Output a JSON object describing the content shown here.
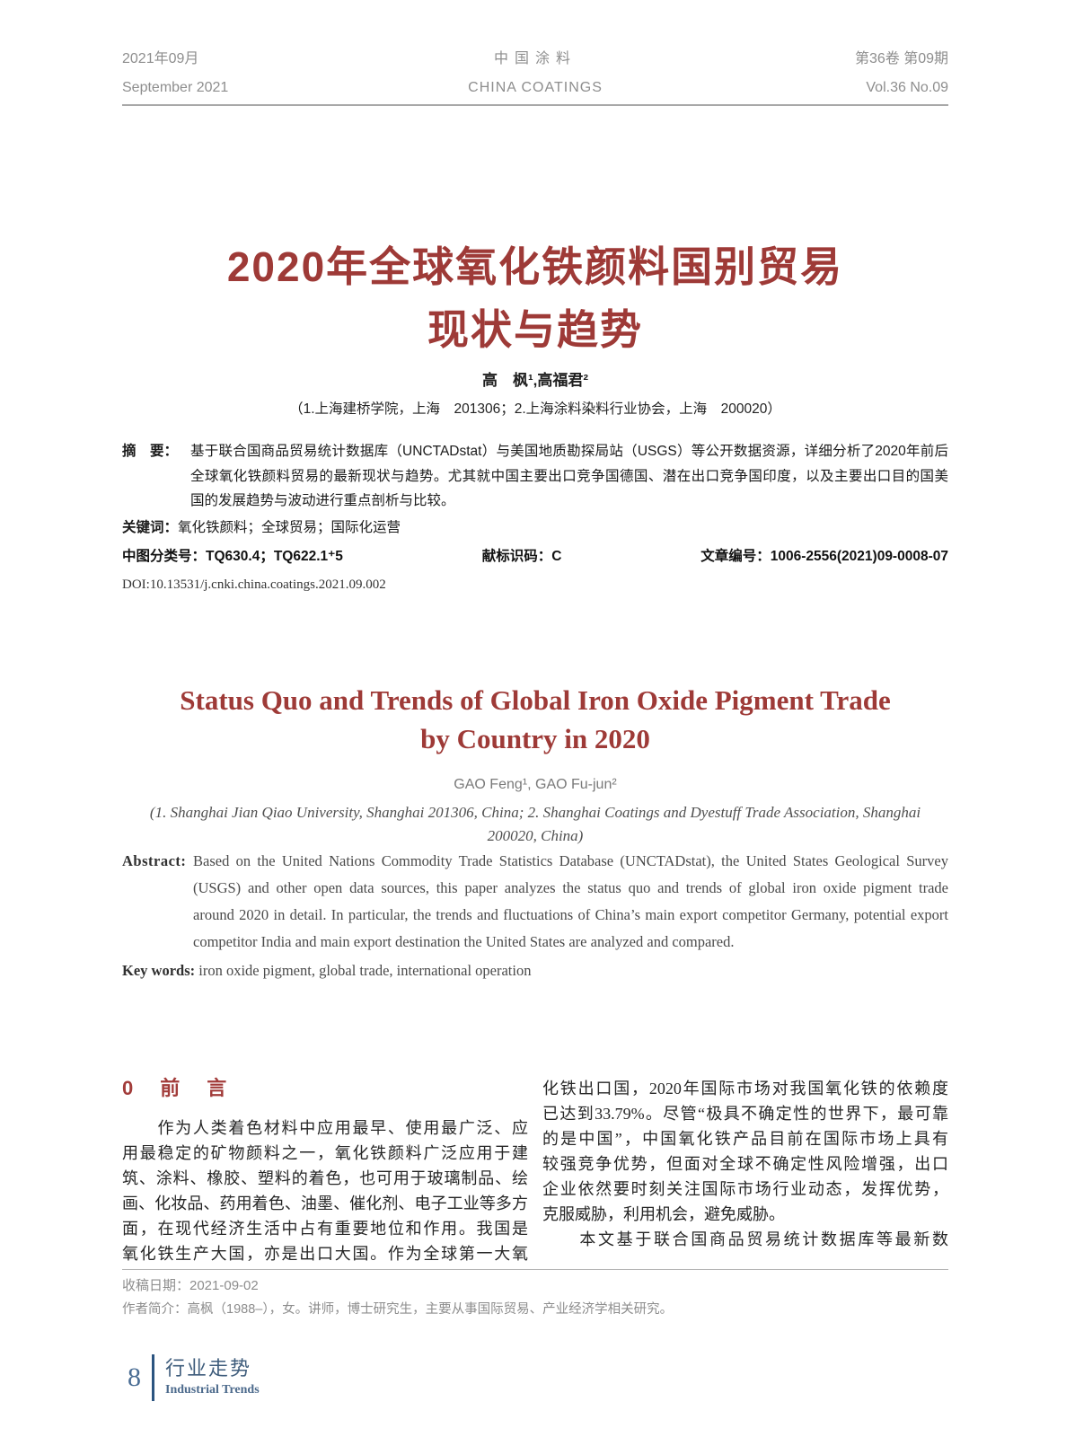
{
  "header": {
    "date_cn": "2021年09月",
    "date_en": "September 2021",
    "journal_cn": "中国涂料",
    "journal_en": "CHINA COATINGS",
    "volume_cn": "第36卷 第09期",
    "volume_en": "Vol.36  No.09"
  },
  "article": {
    "title_cn": [
      "2020年全球氧化铁颜料国别贸易",
      "现状与趋势"
    ],
    "authors_cn": "高　枫¹,高福君²",
    "affiliation_cn": "（1.上海建桥学院，上海　201306；2.上海涂料染料行业协会，上海　200020）",
    "abstract_cn": {
      "label": "摘　要：",
      "lines": [
        "基于联合国商品贸易统计数据库（UNCTADstat）与美国地质勘探局站（USGS）等公开数据资源，详细分析了2020年前后",
        "全球氧化铁颜料贸易的最新现状与趋势。尤其就中国主要出口竞争国德国、潜在出口竞争国印度，以及主要出口目的国美",
        "国的发展趋势与波动进行重点剖析与比较。"
      ]
    },
    "keywords_cn": {
      "label": "关键词：",
      "text": "氧化铁颜料；全球贸易；国际化运营"
    },
    "meta": {
      "clc": "中图分类号：TQ630.4；TQ622.1⁺5",
      "doc_code": "献标识码：C",
      "article_no": "文章编号：1006-2556(2021)09-0008-07",
      "doi": "DOI:10.13531/j.cnki.china.coatings.2021.09.002"
    },
    "title_en": [
      "Status Quo and Trends of Global Iron Oxide Pigment Trade",
      "by Country in 2020"
    ],
    "authors_en": "GAO Feng¹, GAO Fu-jun²",
    "affiliation_en": [
      "(1. Shanghai Jian Qiao University, Shanghai 201306, China; 2. Shanghai Coatings and Dyestuff Trade Association, Shanghai",
      "200020, China)"
    ],
    "abstract_en": {
      "label": "Abstract:",
      "lines": [
        "Based on the United Nations Commodity Trade Statistics Database (UNCTADstat), the United States Geological Survey",
        "(USGS) and other open data sources, this paper analyzes the status quo and trends of global iron oxide pigment trade",
        "around 2020 in detail. In particular, the trends and fluctuations of China’s main export competitor Germany, potential export",
        "competitor India and main export destination the United States are analyzed and compared."
      ]
    },
    "keywords_en": {
      "label": "Key words:",
      "text": "iron oxide pigment, global trade, international operation"
    }
  },
  "body": {
    "section_heading": "0　前　言",
    "left_lines": [
      "　　作为人类着色材料中应用最早、使用最广泛、应",
      "用最稳定的矿物颜料之一，氧化铁颜料广泛应用于建",
      "筑、涂料、橡胶、塑料的着色，也可用于玻璃制品、绘",
      "画、化妆品、药用着色、油墨、催化剂、电子工业等多方",
      "面，在现代经济生活中占有重要地位和作用。我国是",
      "氧化铁生产大国，亦是出口大国。作为全球第一大氧"
    ],
    "right_lines": [
      "化铁出口国，2020年国际市场对我国氧化铁的依赖度",
      "已达到33.79%。尽管“极具不确定性的世界下，最可靠",
      "的是中国”，中国氧化铁产品目前在国际市场上具有",
      "较强竞争优势，但面对全球不确定性风险增强，出口",
      "企业依然要时刻关注国际市场行业动态，发挥优势，",
      "克服威胁，利用机会，避免威胁。",
      "　　本文基于联合国商品贸易统计数据库等最新数"
    ]
  },
  "footnotes": {
    "received": "收稿日期：2021-09-02",
    "bio": "作者简介：高枫（1988–），女。讲师，博士研究生，主要从事国际贸易、产业经济学相关研究。"
  },
  "footer": {
    "page_number": "8",
    "column_cn": "行业走势",
    "column_en": "Industrial Trends"
  },
  "colors": {
    "title_red": "#9e3a37",
    "footer_blue": "#3f5d7c",
    "header_gray": "#8e8e8e"
  }
}
